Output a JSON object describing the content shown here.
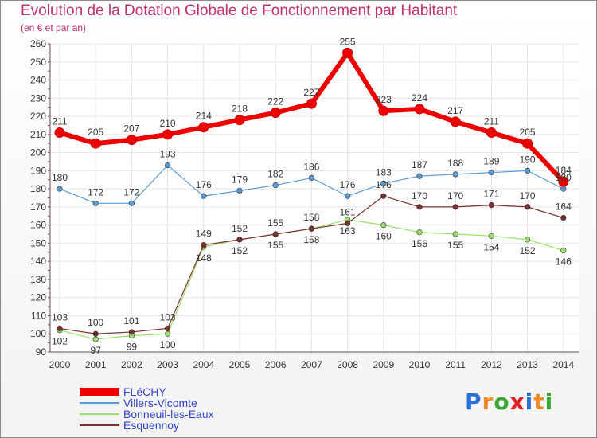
{
  "chart_data": {
    "type": "line",
    "title": "Evolution de la Dotation Globale de Fonctionnement par Habitant",
    "subtitle": "(en € et par an)",
    "xlabel": "",
    "ylabel": "",
    "ylim": [
      90,
      260
    ],
    "ytick_step": 10,
    "grid": true,
    "legend_position": "bottom-left",
    "categories": [
      "2000",
      "2001",
      "2002",
      "2003",
      "2004",
      "2005",
      "2006",
      "2007",
      "2008",
      "2009",
      "2010",
      "2011",
      "2012",
      "2013",
      "2014"
    ],
    "series": [
      {
        "name": "FLéCHY",
        "color": "#ee0000",
        "values": [
          211,
          205,
          207,
          210,
          214,
          218,
          222,
          227,
          255,
          223,
          224,
          217,
          211,
          205,
          184
        ],
        "label_values": [
          "211",
          "205",
          "207",
          "210",
          "214",
          "218",
          "222",
          "227",
          "255",
          "223",
          "224",
          "217",
          "211",
          "205",
          "184"
        ]
      },
      {
        "name": "Villers-Vicomte",
        "color": "#5b9bd5",
        "values": [
          180,
          172,
          172,
          193,
          176,
          179,
          182,
          186,
          176,
          183,
          187,
          188,
          189,
          190,
          180
        ],
        "label_values": [
          "180",
          "172",
          "172",
          "193",
          "176",
          "179",
          "182",
          "186",
          "176",
          "183",
          "187",
          "188",
          "189",
          "190",
          "180"
        ]
      },
      {
        "name": "Bonneuil-les-Eaux",
        "color": "#99e066",
        "values": [
          102,
          97,
          99,
          100,
          148,
          152,
          155,
          158,
          163,
          160,
          156,
          155,
          154,
          152,
          146
        ],
        "label_values": [
          "102",
          "97",
          "99",
          "100",
          "148",
          "152",
          "155",
          "158",
          "163",
          "160",
          "156",
          "155",
          "154",
          "152",
          "146"
        ]
      },
      {
        "name": "Esquennoy",
        "color": "#7b3030",
        "values": [
          103,
          100,
          101,
          103,
          149,
          152,
          155,
          158,
          161,
          176,
          170,
          170,
          171,
          170,
          164
        ],
        "label_values": [
          "103",
          "100",
          "101",
          "103",
          "149",
          "152",
          "155",
          "158",
          "161",
          "176",
          "170",
          "170",
          "171",
          "170",
          "164"
        ]
      }
    ]
  },
  "brand": {
    "text": "Proxiti"
  }
}
